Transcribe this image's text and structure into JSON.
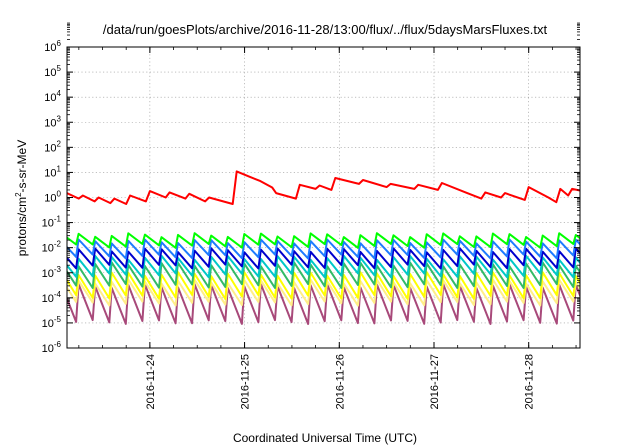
{
  "chart_data": {
    "type": "line",
    "title": "/data/run/goesPlots/archive/2016-11-28/13:00/flux/../flux/5daysMarsFluxes.txt",
    "xlabel": "Coordinated Universal Time (UTC)",
    "ylabel_main": "protons/cm",
    "ylabel_sup": "2",
    "ylabel_tail": "-s-sr-MeV",
    "x_range": [
      "2016-11-23T03:00",
      "2016-11-28T13:00"
    ],
    "x_ticks": [
      "2016-11-24",
      "2016-11-25",
      "2016-11-26",
      "2016-11-27",
      "2016-11-28"
    ],
    "y_scale": "log",
    "y_range": [
      1e-06,
      1000000.0
    ],
    "y_ticks": [
      {
        "base": "10",
        "exp": "6"
      },
      {
        "base": "10",
        "exp": "5"
      },
      {
        "base": "10",
        "exp": "4"
      },
      {
        "base": "10",
        "exp": "3"
      },
      {
        "base": "10",
        "exp": "2"
      },
      {
        "base": "10",
        "exp": "1"
      },
      {
        "base": "10",
        "exp": "0"
      },
      {
        "base": "10",
        "exp": "-1"
      },
      {
        "base": "10",
        "exp": "-2"
      },
      {
        "base": "10",
        "exp": "-3"
      },
      {
        "base": "10",
        "exp": "-4"
      },
      {
        "base": "10",
        "exp": "-5"
      },
      {
        "base": "10",
        "exp": "-6"
      }
    ],
    "grid": true,
    "legend": "none",
    "series": [
      {
        "color": "#ff0000",
        "values": [
          [
            "2016-11-23T03:00",
            1.5
          ],
          [
            "2016-11-23T06:00",
            0.9
          ],
          [
            "2016-11-23T07:00",
            1.2
          ],
          [
            "2016-11-23T10:00",
            0.7
          ],
          [
            "2016-11-23T11:00",
            1.0
          ],
          [
            "2016-11-23T14:00",
            0.6
          ],
          [
            "2016-11-23T15:00",
            0.9
          ],
          [
            "2016-11-23T18:00",
            0.55
          ],
          [
            "2016-11-23T19:00",
            1.2
          ],
          [
            "2016-11-23T23:00",
            0.7
          ],
          [
            "2016-11-24T00:00",
            1.8
          ],
          [
            "2016-11-24T04:00",
            1.0
          ],
          [
            "2016-11-24T05:00",
            1.6
          ],
          [
            "2016-11-24T09:00",
            0.9
          ],
          [
            "2016-11-24T10:00",
            1.4
          ],
          [
            "2016-11-24T14:00",
            0.7
          ],
          [
            "2016-11-24T15:00",
            1.0
          ],
          [
            "2016-11-24T21:00",
            0.55
          ],
          [
            "2016-11-24T22:00",
            11
          ],
          [
            "2016-11-25T01:00",
            7
          ],
          [
            "2016-11-25T04:00",
            4.5
          ],
          [
            "2016-11-25T07:00",
            2.5
          ],
          [
            "2016-11-25T08:00",
            1.5
          ],
          [
            "2016-11-25T13:00",
            0.9
          ],
          [
            "2016-11-25T14:00",
            3.2
          ],
          [
            "2016-11-25T18:00",
            2.2
          ],
          [
            "2016-11-25T19:00",
            3.0
          ],
          [
            "2016-11-25T22:00",
            2.0
          ],
          [
            "2016-11-25T23:00",
            6.0
          ],
          [
            "2016-11-26T05:00",
            3.5
          ],
          [
            "2016-11-26T06:00",
            5.0
          ],
          [
            "2016-11-26T12:00",
            2.6
          ],
          [
            "2016-11-26T13:00",
            3.5
          ],
          [
            "2016-11-26T19:00",
            2.2
          ],
          [
            "2016-11-26T20:00",
            3.2
          ],
          [
            "2016-11-27T01:00",
            2.0
          ],
          [
            "2016-11-27T02:00",
            3.8
          ],
          [
            "2016-11-27T08:00",
            1.6
          ],
          [
            "2016-11-27T12:00",
            0.9
          ],
          [
            "2016-11-27T13:00",
            1.6
          ],
          [
            "2016-11-27T17:00",
            1.0
          ],
          [
            "2016-11-27T18:00",
            1.5
          ],
          [
            "2016-11-27T23:00",
            0.8
          ],
          [
            "2016-11-28T00:00",
            2.6
          ],
          [
            "2016-11-28T05:00",
            1.0
          ],
          [
            "2016-11-28T07:00",
            0.65
          ],
          [
            "2016-11-28T08:00",
            2.2
          ],
          [
            "2016-11-28T10:00",
            1.2
          ],
          [
            "2016-11-28T11:00",
            2.2
          ],
          [
            "2016-11-28T13:00",
            1.9
          ]
        ]
      },
      {
        "color": "#00ff00",
        "sawtooth": {
          "peak": 0.032,
          "trough": 0.012,
          "period_hours": 4.2
        }
      },
      {
        "color": "#1e7bff",
        "sawtooth": {
          "peak": 0.018,
          "trough": 0.0045,
          "period_hours": 4.2
        }
      },
      {
        "color": "#0000cd",
        "sawtooth": {
          "peak": 0.008,
          "trough": 0.0018,
          "period_hours": 4.2
        }
      },
      {
        "color": "#00c8c8",
        "sawtooth": {
          "peak": 0.004,
          "trough": 0.0008,
          "period_hours": 4.2
        }
      },
      {
        "color": "#33bb66",
        "sawtooth": {
          "peak": 0.0022,
          "trough": 0.0003,
          "period_hours": 4.2
        }
      },
      {
        "color": "#ffff00",
        "sawtooth": {
          "peak": 0.0009,
          "trough": 0.00011,
          "period_hours": 4.2
        }
      },
      {
        "color": "#ffee88",
        "sawtooth": {
          "peak": 0.00045,
          "trough": 6e-05,
          "period_hours": 4.2
        }
      },
      {
        "color": "#a8497a",
        "sawtooth": {
          "peak": 0.0003,
          "trough": 1.1e-05,
          "period_hours": 4.2
        }
      }
    ]
  }
}
